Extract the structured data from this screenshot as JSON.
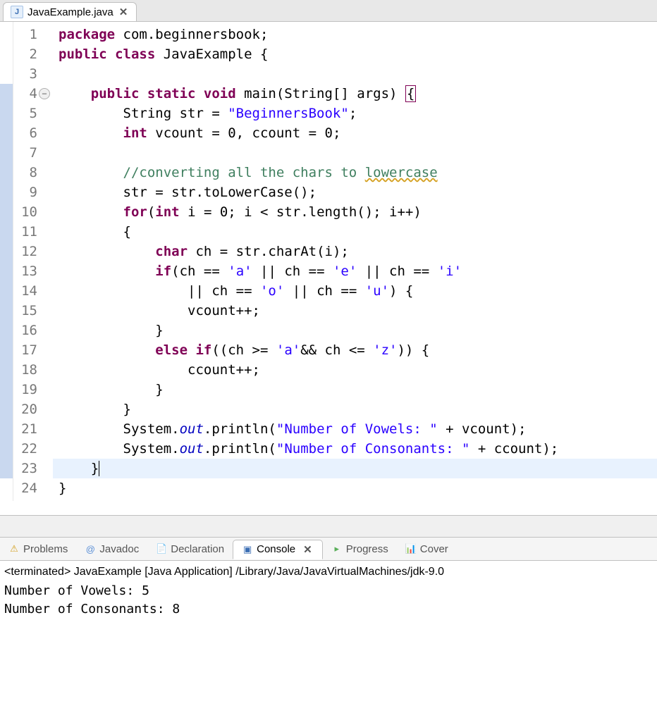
{
  "editor": {
    "tab_filename": "JavaExample.java",
    "line_count": 24,
    "folded_line": 4,
    "highlighted_line": 23,
    "changed_lines_start": 4,
    "changed_lines_end": 23,
    "colors": {
      "keyword": "#7f0055",
      "string": "#2a00ff",
      "comment": "#3f7f5f",
      "static_field": "#0000c0",
      "gutter_text": "#787878",
      "highlight_bg": "#e8f2fe",
      "change_marker_bg": "#c9d8ef"
    },
    "code": {
      "l1": {
        "tokens": [
          {
            "t": "package ",
            "c": "kw"
          },
          {
            "t": "com.beginnersbook;",
            "c": ""
          }
        ]
      },
      "l2": {
        "tokens": [
          {
            "t": "public class ",
            "c": "kw"
          },
          {
            "t": "JavaExample {",
            "c": ""
          }
        ]
      },
      "l3": {
        "tokens": [
          {
            "t": "",
            "c": ""
          }
        ]
      },
      "l4": {
        "tokens": [
          {
            "t": "    ",
            "c": ""
          },
          {
            "t": "public static void ",
            "c": "kw"
          },
          {
            "t": "main(String[] args) ",
            "c": ""
          },
          {
            "t": "{",
            "c": "box"
          }
        ]
      },
      "l5": {
        "tokens": [
          {
            "t": "        String str = ",
            "c": ""
          },
          {
            "t": "\"BeginnersBook\"",
            "c": "str"
          },
          {
            "t": ";",
            "c": ""
          }
        ]
      },
      "l6": {
        "tokens": [
          {
            "t": "        ",
            "c": ""
          },
          {
            "t": "int ",
            "c": "kw"
          },
          {
            "t": "vcount = 0, ccount = 0;",
            "c": ""
          }
        ]
      },
      "l7": {
        "tokens": [
          {
            "t": "",
            "c": ""
          }
        ]
      },
      "l8": {
        "tokens": [
          {
            "t": "        ",
            "c": ""
          },
          {
            "t": "//converting all the chars to ",
            "c": "com"
          },
          {
            "t": "lowercase",
            "c": "com underline"
          }
        ]
      },
      "l9": {
        "tokens": [
          {
            "t": "        str = str.toLowerCase();",
            "c": ""
          }
        ]
      },
      "l10": {
        "tokens": [
          {
            "t": "        ",
            "c": ""
          },
          {
            "t": "for",
            "c": "kw"
          },
          {
            "t": "(",
            "c": ""
          },
          {
            "t": "int ",
            "c": "kw"
          },
          {
            "t": "i = 0; i < str.length(); i++)",
            "c": ""
          }
        ]
      },
      "l11": {
        "tokens": [
          {
            "t": "        {",
            "c": ""
          }
        ]
      },
      "l12": {
        "tokens": [
          {
            "t": "            ",
            "c": ""
          },
          {
            "t": "char ",
            "c": "kw"
          },
          {
            "t": "ch = str.charAt(i);",
            "c": ""
          }
        ]
      },
      "l13": {
        "tokens": [
          {
            "t": "            ",
            "c": ""
          },
          {
            "t": "if",
            "c": "kw"
          },
          {
            "t": "(ch == ",
            "c": ""
          },
          {
            "t": "'a'",
            "c": "char"
          },
          {
            "t": " || ch == ",
            "c": ""
          },
          {
            "t": "'e'",
            "c": "char"
          },
          {
            "t": " || ch == ",
            "c": ""
          },
          {
            "t": "'i'",
            "c": "char"
          }
        ]
      },
      "l14": {
        "tokens": [
          {
            "t": "                || ch == ",
            "c": ""
          },
          {
            "t": "'o'",
            "c": "char"
          },
          {
            "t": " || ch == ",
            "c": ""
          },
          {
            "t": "'u'",
            "c": "char"
          },
          {
            "t": ") {",
            "c": ""
          }
        ]
      },
      "l15": {
        "tokens": [
          {
            "t": "                vcount++;",
            "c": ""
          }
        ]
      },
      "l16": {
        "tokens": [
          {
            "t": "            }",
            "c": ""
          }
        ]
      },
      "l17": {
        "tokens": [
          {
            "t": "            ",
            "c": ""
          },
          {
            "t": "else if",
            "c": "kw"
          },
          {
            "t": "((ch >= ",
            "c": ""
          },
          {
            "t": "'a'",
            "c": "char"
          },
          {
            "t": "&& ch <= ",
            "c": ""
          },
          {
            "t": "'z'",
            "c": "char"
          },
          {
            "t": ")) {",
            "c": ""
          }
        ]
      },
      "l18": {
        "tokens": [
          {
            "t": "                ccount++;",
            "c": ""
          }
        ]
      },
      "l19": {
        "tokens": [
          {
            "t": "            }",
            "c": ""
          }
        ]
      },
      "l20": {
        "tokens": [
          {
            "t": "        }",
            "c": ""
          }
        ]
      },
      "l21": {
        "tokens": [
          {
            "t": "        System.",
            "c": ""
          },
          {
            "t": "out",
            "c": "fld"
          },
          {
            "t": ".println(",
            "c": ""
          },
          {
            "t": "\"Number of Vowels: \"",
            "c": "str"
          },
          {
            "t": " + vcount);",
            "c": ""
          }
        ]
      },
      "l22": {
        "tokens": [
          {
            "t": "        System.",
            "c": ""
          },
          {
            "t": "out",
            "c": "fld"
          },
          {
            "t": ".println(",
            "c": ""
          },
          {
            "t": "\"Number of Consonants: \"",
            "c": "str"
          },
          {
            "t": " + ccount);",
            "c": ""
          }
        ]
      },
      "l23": {
        "tokens": [
          {
            "t": "    }",
            "c": ""
          }
        ]
      },
      "l24": {
        "tokens": [
          {
            "t": "}",
            "c": ""
          }
        ]
      }
    }
  },
  "bottom_tabs": {
    "items": [
      {
        "icon": "⚠",
        "icon_color": "#d4a020",
        "label": "Problems",
        "active": false
      },
      {
        "icon": "@",
        "icon_color": "#5a8fd6",
        "label": "Javadoc",
        "active": false
      },
      {
        "icon": "📄",
        "icon_color": "#d4a020",
        "label": "Declaration",
        "active": false
      },
      {
        "icon": "▣",
        "icon_color": "#3a6db3",
        "label": "Console",
        "active": true,
        "closable": true
      },
      {
        "icon": "▸",
        "icon_color": "#5aaf5a",
        "label": "Progress",
        "active": false
      },
      {
        "icon": "📊",
        "icon_color": "#d4a020",
        "label": "Cover",
        "active": false
      }
    ]
  },
  "console": {
    "header": "<terminated> JavaExample [Java Application] /Library/Java/JavaVirtualMachines/jdk-9.0",
    "output_lines": [
      "Number of Vowels: 5",
      "Number of Consonants: 8"
    ]
  }
}
